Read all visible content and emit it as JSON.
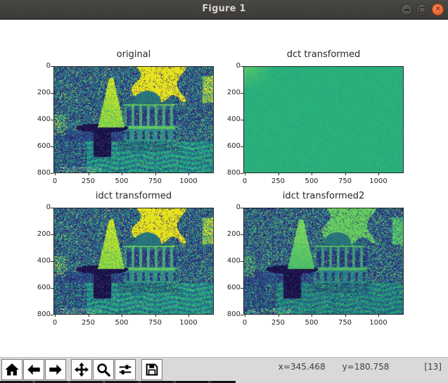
{
  "window": {
    "title": "Figure 1",
    "controls": [
      {
        "icon": "minimize"
      },
      {
        "icon": "maximize"
      },
      {
        "icon": "close"
      }
    ]
  },
  "colors": {
    "titlebar_bg": "#3e3d39",
    "close_button": "#e95420",
    "figure_bg": "#ffffff",
    "toolbar_bg": "#d9d9d9",
    "dct_green": "#2ab07a",
    "viridis_yellow": "#fde725",
    "viridis_teal": "#21918c",
    "viridis_dark": "#3b528b"
  },
  "chart_data": [
    {
      "type": "heatmap",
      "title": "original",
      "colormap": "viridis",
      "x_ticks": [
        0,
        250,
        500,
        750,
        1000
      ],
      "y_ticks": [
        0,
        200,
        400,
        600,
        800
      ],
      "x_range": [
        0,
        1200
      ],
      "y_range": [
        810,
        0
      ],
      "scene": "park fountain with bright spray jet in front of a columned mansion, dark trees on both sides, bright yellow sky patch"
    },
    {
      "type": "heatmap",
      "title": "dct transformed",
      "colormap": "viridis",
      "x_ticks": [
        0,
        250,
        500,
        750,
        1000
      ],
      "y_ticks": [
        0,
        200,
        400,
        600,
        800
      ],
      "x_range": [
        0,
        1200
      ],
      "y_range": [
        810,
        0
      ],
      "scene": "near-uniform mid-green noise field, slightly brighter toward the top-left corner"
    },
    {
      "type": "heatmap",
      "title": "idct transformed",
      "colormap": "viridis",
      "x_ticks": [
        0,
        250,
        500,
        750,
        1000
      ],
      "y_ticks": [
        0,
        200,
        400,
        600,
        800
      ],
      "x_range": [
        0,
        1200
      ],
      "y_range": [
        810,
        0
      ],
      "scene": "reconstruction visually identical to the original"
    },
    {
      "type": "heatmap",
      "title": "idct transformed2",
      "colormap": "viridis",
      "x_ticks": [
        0,
        250,
        500,
        750,
        1000
      ],
      "y_ticks": [
        0,
        200,
        400,
        600,
        800
      ],
      "x_range": [
        0,
        1200
      ],
      "y_range": [
        810,
        0
      ],
      "scene": "reconstruction with green sky and bluer, dimmer tones, fewer yellow highlights"
    }
  ],
  "toolbar": {
    "buttons": [
      {
        "icon": "home"
      },
      {
        "icon": "back"
      },
      {
        "icon": "forward"
      },
      {
        "icon": "pan"
      },
      {
        "icon": "zoom"
      },
      {
        "icon": "configure-subplots"
      },
      {
        "icon": "save"
      }
    ],
    "status": {
      "cursor_x": "x=345.468",
      "cursor_y": "y=180.758",
      "pixel_value": "[13]"
    }
  }
}
